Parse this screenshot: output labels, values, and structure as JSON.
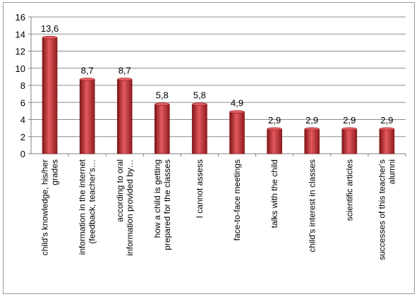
{
  "chart_data": {
    "type": "bar",
    "categories": [
      [
        "child's knowledge, his/her",
        "grades"
      ],
      [
        "information in the internet",
        "(feedback, teacher's…"
      ],
      [
        "according to oral",
        "information provided by…"
      ],
      [
        "how a child is getting",
        "prepared for the classes"
      ],
      [
        "I cannot assess"
      ],
      [
        "face-to-face meetings"
      ],
      [
        "talks with the child"
      ],
      [
        "child's interest in classes"
      ],
      [
        "scientific articles"
      ],
      [
        "successes of this teacher's",
        "alumni"
      ]
    ],
    "values": [
      13.6,
      8.7,
      8.7,
      5.8,
      5.8,
      4.9,
      2.9,
      2.9,
      2.9,
      2.9
    ],
    "data_labels": [
      "13,6",
      "8,7",
      "8,7",
      "5,8",
      "5,8",
      "4,9",
      "2,9",
      "2,9",
      "2,9",
      "2,9"
    ],
    "yticks": [
      "0",
      "2",
      "4",
      "6",
      "8",
      "10",
      "12",
      "14",
      "16"
    ],
    "ylim": [
      0,
      16
    ],
    "grid": true,
    "legend": "none",
    "colors": {
      "bar": "#c0272d",
      "bar_dark": "#7e1416",
      "bar_light": "#e45a5e",
      "grid": "#8c8c8c",
      "axis": "#808080"
    }
  }
}
